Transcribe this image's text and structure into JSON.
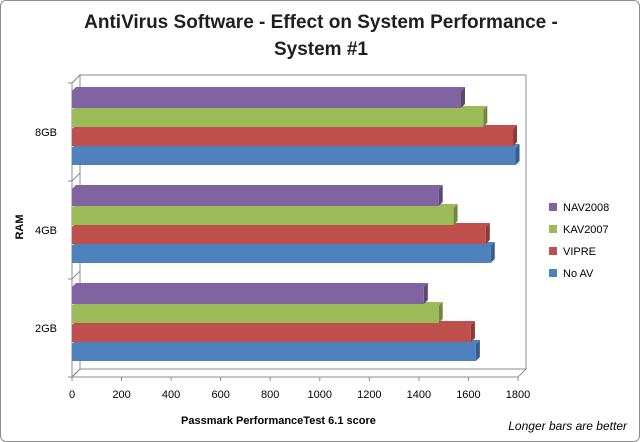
{
  "chart_data": {
    "type": "bar",
    "orientation": "horizontal",
    "title_line1": "AntiVirus Software - Effect on System Performance -",
    "title_line2": "System #1",
    "xlabel": "Passmark PerformanceTest 6.1 score",
    "ylabel": "RAM",
    "xlim": [
      0,
      1800
    ],
    "xticks": [
      "0",
      "200",
      "400",
      "600",
      "800",
      "1000",
      "1200",
      "1400",
      "1600",
      "1800"
    ],
    "categories": [
      "2GB",
      "4GB",
      "8GB"
    ],
    "series": [
      {
        "name": "No AV",
        "color": "#4f81bd",
        "values": [
          1630,
          1690,
          1790
        ]
      },
      {
        "name": "VIPRE",
        "color": "#c0504d",
        "values": [
          1610,
          1670,
          1780
        ]
      },
      {
        "name": "KAV2007",
        "color": "#9bbb59",
        "values": [
          1480,
          1540,
          1660
        ]
      },
      {
        "name": "NAV2008",
        "color": "#8064a2",
        "values": [
          1420,
          1480,
          1570
        ]
      }
    ],
    "legend": {
      "position": "right",
      "order": [
        "NAV2008",
        "KAV2007",
        "VIPRE",
        "No AV"
      ]
    },
    "style": "3d-clustered-bar",
    "grid": false,
    "footnote": "Longer bars are better"
  }
}
